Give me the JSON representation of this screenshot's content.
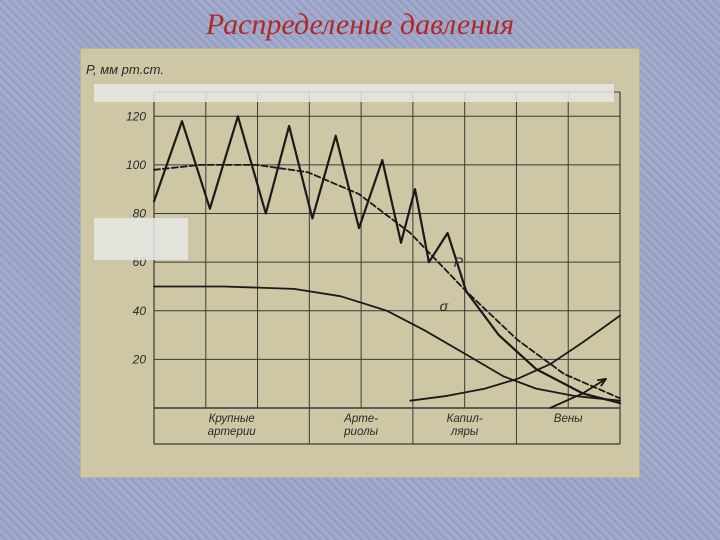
{
  "title": "Распределение давления",
  "chart": {
    "type": "line",
    "background_color": "#cdc7a6",
    "grid_color": "#3a3a3a",
    "line_color": "#1a1a1a",
    "text_color": "#2a2a2a",
    "title_color": "#b02828",
    "title_fontsize": 30,
    "label_fontsize": 12,
    "y_axis_label": "P, мм рт.ст.",
    "y_ticks": [
      20,
      40,
      60,
      80,
      100,
      120
    ],
    "ylim": [
      0,
      130
    ],
    "x_sections": [
      {
        "label": "Крупные\nартерии",
        "span": 3
      },
      {
        "label": "Арте-\nриолы",
        "span": 2
      },
      {
        "label": "Капил-\nляры",
        "span": 2
      },
      {
        "label": "Вены",
        "span": 2
      }
    ],
    "x_grid_count": 9,
    "pulsatile_series": {
      "description": "oscillating arterial pressure wave",
      "line_width": 2.2,
      "points": [
        [
          0.0,
          85
        ],
        [
          0.06,
          118
        ],
        [
          0.12,
          82
        ],
        [
          0.18,
          120
        ],
        [
          0.24,
          80
        ],
        [
          0.29,
          116
        ],
        [
          0.34,
          78
        ],
        [
          0.39,
          112
        ],
        [
          0.44,
          74
        ],
        [
          0.49,
          102
        ],
        [
          0.53,
          68
        ],
        [
          0.56,
          90
        ],
        [
          0.59,
          60
        ],
        [
          0.63,
          72
        ],
        [
          0.67,
          48
        ],
        [
          0.74,
          30
        ],
        [
          0.82,
          16
        ],
        [
          0.92,
          6
        ],
        [
          1.0,
          2
        ]
      ]
    },
    "mean_pressure_series": {
      "label": "P",
      "label_pos": [
        0.63,
        58
      ],
      "line_width": 1.8,
      "dash": "6,3",
      "points": [
        [
          0.0,
          98
        ],
        [
          0.1,
          100
        ],
        [
          0.22,
          100
        ],
        [
          0.33,
          97
        ],
        [
          0.44,
          88
        ],
        [
          0.55,
          72
        ],
        [
          0.67,
          48
        ],
        [
          0.78,
          28
        ],
        [
          0.88,
          14
        ],
        [
          1.0,
          4
        ]
      ]
    },
    "sigma_series": {
      "label": "σ",
      "label_pos": [
        0.6,
        40
      ],
      "line_width": 1.8,
      "points": [
        [
          0.0,
          50
        ],
        [
          0.15,
          50
        ],
        [
          0.3,
          49
        ],
        [
          0.4,
          46
        ],
        [
          0.5,
          40
        ],
        [
          0.58,
          32
        ],
        [
          0.67,
          22
        ],
        [
          0.75,
          13
        ],
        [
          0.82,
          8
        ],
        [
          0.9,
          5
        ],
        [
          0.95,
          4
        ],
        [
          1.0,
          3
        ]
      ]
    },
    "rising_series": {
      "description": "v (velocity / cross-section) rising curve",
      "line_width": 1.8,
      "points": [
        [
          0.55,
          3
        ],
        [
          0.63,
          5
        ],
        [
          0.71,
          8
        ],
        [
          0.78,
          12
        ],
        [
          0.85,
          18
        ],
        [
          0.92,
          27
        ],
        [
          1.0,
          38
        ]
      ]
    },
    "vena_arrow": {
      "line_width": 1.8,
      "points": [
        [
          0.85,
          0
        ],
        [
          0.92,
          6
        ],
        [
          0.97,
          12
        ]
      ],
      "arrow_at_end": true
    }
  }
}
